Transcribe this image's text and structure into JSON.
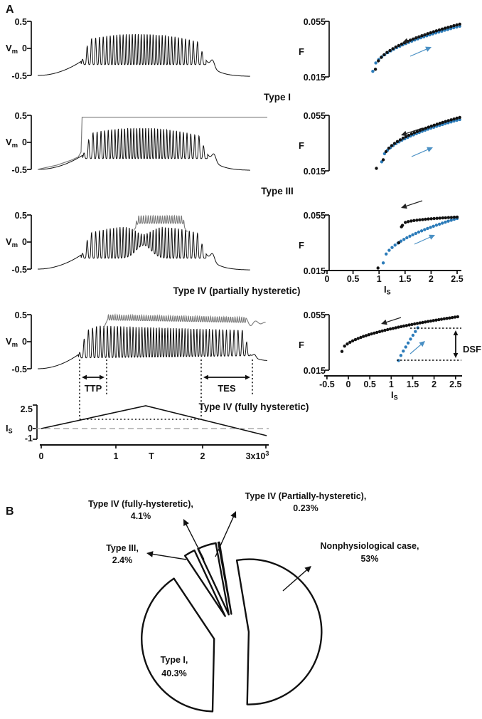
{
  "figure": {
    "panelA_label": "A",
    "panelB_label": "B"
  },
  "panelA": {
    "vm_axis": {
      "top": "0.5",
      "mid": "0",
      "bottom": "-0.5",
      "label_main": "V",
      "label_sub": "m"
    },
    "f_axis": {
      "top": "0.055",
      "mid": "F",
      "bottom": "0.015"
    },
    "is_label": {
      "main": "I",
      "sub": "S"
    },
    "row_labels": [
      "Type I",
      "Type III",
      "Type IV (partially hysteretic)",
      "Type IV (fully hysteretic)"
    ],
    "fi_xticks_row3": [
      "0",
      "0.5",
      "1",
      "1.5",
      "2",
      "2.5"
    ],
    "fi_xticks_row4": [
      "-0.5",
      "0",
      "0.5",
      "1",
      "1.5",
      "2",
      "2.5"
    ],
    "annotations": {
      "ttp": "TTP",
      "tes": "TES",
      "dsf": "DSF"
    },
    "ramp_axis": {
      "top": "2.5",
      "mid": "0",
      "bottom": "-1",
      "xticks": [
        "0",
        "1",
        "T",
        "2"
      ],
      "xtick_last_main": "3x10",
      "xtick_last_sup": "3"
    }
  },
  "panelB": {
    "labels": {
      "fully": {
        "line1": "Type IV (fully-hysteretic),",
        "line2": "4.1%"
      },
      "partially": {
        "line1": "Type IV (Partially-hysteretic),",
        "line2": "0.23%"
      },
      "type3": {
        "line1": "Type III,",
        "line2": "2.4%"
      },
      "nonphys": {
        "line1": "Nonphysiological case,",
        "line2": "53%"
      },
      "type1": {
        "line1": "Type I,",
        "line2": "40.3%"
      }
    }
  },
  "colors": {
    "blue": "#2b7bb9",
    "blue_light": "#4a90c4",
    "black": "#111111",
    "gray_trace": "#7a7a7a",
    "dashed_zero": "#999999"
  },
  "chart_data": [
    {
      "id": "vm_trace_type1",
      "type": "line",
      "title": "Type I",
      "ylabel": "Vm",
      "ylim": [
        -0.5,
        0.5
      ],
      "baseline": -0.5,
      "spike_envelope": [
        -0.3,
        0.27
      ],
      "spike_interval_T1e3": [
        0.51,
        2.14
      ],
      "trace_end_T1e3": 2.8,
      "gray_trace": "none"
    },
    {
      "id": "vm_trace_type3",
      "type": "line",
      "title": "Type III",
      "ylabel": "Vm",
      "ylim": [
        -0.5,
        0.5
      ],
      "baseline": -0.5,
      "spike_envelope": [
        -0.3,
        0.27
      ],
      "spike_interval_T1e3": [
        0.53,
        2.16
      ],
      "trace_end_T1e3": 2.8,
      "gray_trace": "jumps to depolarization block plateau at Vm=0.47 and stays"
    },
    {
      "id": "vm_trace_type4_partial",
      "type": "line",
      "title": "Type IV (partially hysteretic)",
      "ylabel": "Vm",
      "ylim": [
        -0.5,
        0.5
      ],
      "baseline": -0.5,
      "spike_envelope": [
        -0.3,
        0.3
      ],
      "spike_interval_T1e3": [
        0.51,
        2.14
      ],
      "trace_end_T1e3": 2.8,
      "gray_trace": "transient depolarized burst 0.34-0.49 near ramp peak"
    },
    {
      "id": "vm_trace_type4_full",
      "type": "line",
      "title": "Type IV (fully hysteretic)",
      "ylabel": "Vm",
      "ylim": [
        -0.5,
        0.5
      ],
      "baseline": -0.5,
      "spike_envelope": [
        -0.3,
        0.31
      ],
      "spike_interval_T1e3": [
        0.49,
        2.82
      ],
      "trace_end_T1e3": 3.0,
      "gray_trace": "sustained depolarized small oscillations 0.40-0.52"
    },
    {
      "id": "fi_curve_type1",
      "type": "scatter",
      "xlabel": "Is",
      "ylabel": "F",
      "xlim": [
        0,
        2.5
      ],
      "ylim": [
        0.015,
        0.055
      ],
      "hysteresis": "none",
      "series": [
        {
          "name": "ascending",
          "color": "blue",
          "is_range": [
            0.88,
            2.55
          ],
          "f_range": [
            0.019,
            0.0515
          ],
          "shape": "concave",
          "n": 30
        },
        {
          "name": "descending",
          "color": "black",
          "is_range": [
            0.93,
            2.55
          ],
          "f_range": [
            0.0205,
            0.053
          ],
          "shape": "concave",
          "n": 30
        }
      ],
      "extra_dots": []
    },
    {
      "id": "fi_curve_type3",
      "type": "scatter",
      "xlabel": "Is",
      "ylabel": "F",
      "xlim": [
        0,
        2.5
      ],
      "ylim": [
        0.015,
        0.055
      ],
      "hysteresis": "none, discontinuous onset",
      "series": [
        {
          "name": "ascending",
          "color": "blue",
          "is_range": [
            1.05,
            2.55
          ],
          "f_range": [
            0.0215,
            0.052
          ],
          "shape": "concave",
          "n": 28
        },
        {
          "name": "descending",
          "color": "black",
          "is_range": [
            1.08,
            2.55
          ],
          "f_range": [
            0.023,
            0.0535
          ],
          "shape": "concave",
          "n": 28
        }
      ],
      "extra_dots": [
        {
          "is": 0.95,
          "f": 0.0168,
          "color": "black"
        }
      ]
    },
    {
      "id": "fi_curve_type4_partial",
      "type": "scatter",
      "xlabel": "Is",
      "ylabel": "F",
      "xlim": [
        0,
        2.5
      ],
      "ylim": [
        0.015,
        0.055
      ],
      "hysteresis": "partial loop",
      "series": [
        {
          "name": "ascending",
          "color": "blue",
          "is_range": [
            1.08,
            2.5
          ],
          "f_range": [
            0.0205,
            0.0525
          ],
          "shape": "concave",
          "n": 26
        },
        {
          "name": "descending",
          "color": "black",
          "is_range": [
            1.45,
            2.5
          ],
          "f_range": [
            0.0475,
            0.0535
          ],
          "shape": "flat-high",
          "n": 20
        }
      ],
      "extra_dots": [
        {
          "is": 0.98,
          "f": 0.0168,
          "color": "black"
        },
        {
          "is": 1.38,
          "f": 0.035,
          "color": "black"
        },
        {
          "is": 1.43,
          "f": 0.0465,
          "color": "black"
        }
      ]
    },
    {
      "id": "fi_curve_type4_full",
      "type": "scatter",
      "xlabel": "Is",
      "ylabel": "F",
      "xlim": [
        -0.5,
        2.5
      ],
      "ylim": [
        0.015,
        0.055
      ],
      "hysteresis": "full loop, DSF = frequency drop",
      "series": [
        {
          "name": "descending",
          "color": "black",
          "is_range": [
            -0.15,
            2.55
          ],
          "f_range": [
            0.0285,
            0.0535
          ],
          "shape": "concave",
          "n": 44
        },
        {
          "name": "ascending",
          "color": "blue",
          "is_range": [
            1.17,
            1.62
          ],
          "f_range": [
            0.022,
            0.0455
          ],
          "shape": "steep",
          "n": 9
        }
      ],
      "extra_dots": []
    },
    {
      "id": "is_ramp",
      "type": "line",
      "ylabel": "Is",
      "xlabel": "T",
      "yticks": [
        2.5,
        0,
        -1
      ],
      "xticks": [
        0,
        1000,
        2000,
        3000
      ],
      "points_T_Is": [
        [
          0,
          0
        ],
        [
          1400,
          2.5
        ],
        [
          3020,
          -0.78
        ]
      ],
      "zero_line": "dashed",
      "threshold_level_Is": 1.0,
      "ttp_interval_T": [
        514,
        876
      ],
      "tes_interval_T": [
        2143,
        2830
      ]
    },
    {
      "id": "type_distribution_pie",
      "type": "pie",
      "slices": [
        {
          "label": "Nonphysiological case",
          "pct": 53,
          "explode": 20
        },
        {
          "label": "Type I",
          "pct": 40.3,
          "explode": 30
        },
        {
          "label": "Type III",
          "pct": 2.4,
          "explode": 27
        },
        {
          "label": "Type IV (fully-hysteretic)",
          "pct": 4.1,
          "explode": 27
        },
        {
          "label": "Type IV (Partially-hysteretic)",
          "pct": 0.23,
          "explode": 27
        }
      ],
      "start_angle_deg_from_north": -9.5,
      "direction": "clockwise"
    }
  ]
}
